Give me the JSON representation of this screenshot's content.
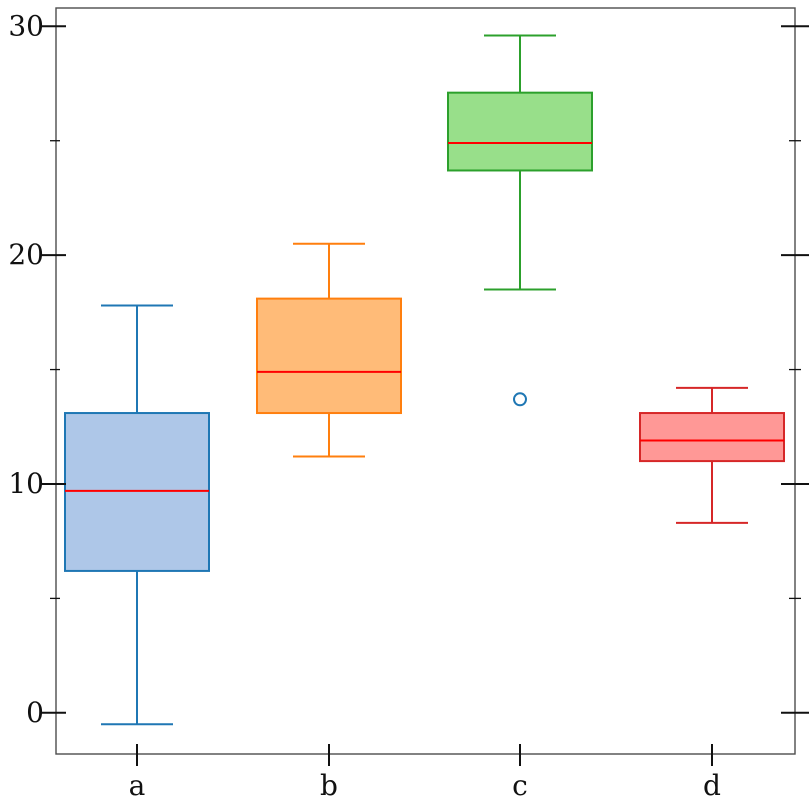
{
  "chart_data": {
    "type": "box",
    "title": "",
    "xlabel": "",
    "ylabel": "",
    "categories": [
      "a",
      "b",
      "c",
      "d"
    ],
    "ylim": [
      -1.8,
      30.8
    ],
    "y_ticks": [
      0,
      10,
      20,
      30
    ],
    "y_tick_labels": [
      "0",
      "10",
      "20",
      "30"
    ],
    "y_minor_ticks": [
      5,
      15,
      25
    ],
    "grid": false,
    "median_color": "#ff0000",
    "series": [
      {
        "category": "a",
        "whisker_low": -0.5,
        "q1": 6.2,
        "median": 9.7,
        "q3": 13.1,
        "whisker_high": 17.8,
        "outliers": [],
        "edge_color": "#1f77b4",
        "fill_color": "#aec7e8"
      },
      {
        "category": "b",
        "whisker_low": 11.2,
        "q1": 13.1,
        "median": 14.9,
        "q3": 18.1,
        "whisker_high": 20.5,
        "outliers": [],
        "edge_color": "#ff7f0e",
        "fill_color": "#ffbb78"
      },
      {
        "category": "c",
        "whisker_low": 18.5,
        "q1": 23.7,
        "median": 24.9,
        "q3": 27.1,
        "whisker_high": 29.6,
        "outliers": [
          13.7
        ],
        "edge_color": "#2ca02c",
        "fill_color": "#98df8a",
        "outlier_color": "#1f77b4"
      },
      {
        "category": "d",
        "whisker_low": 8.3,
        "q1": 11.0,
        "median": 11.9,
        "q3": 13.1,
        "whisker_high": 14.2,
        "outliers": [],
        "edge_color": "#d62728",
        "fill_color": "#ff9896"
      }
    ]
  }
}
